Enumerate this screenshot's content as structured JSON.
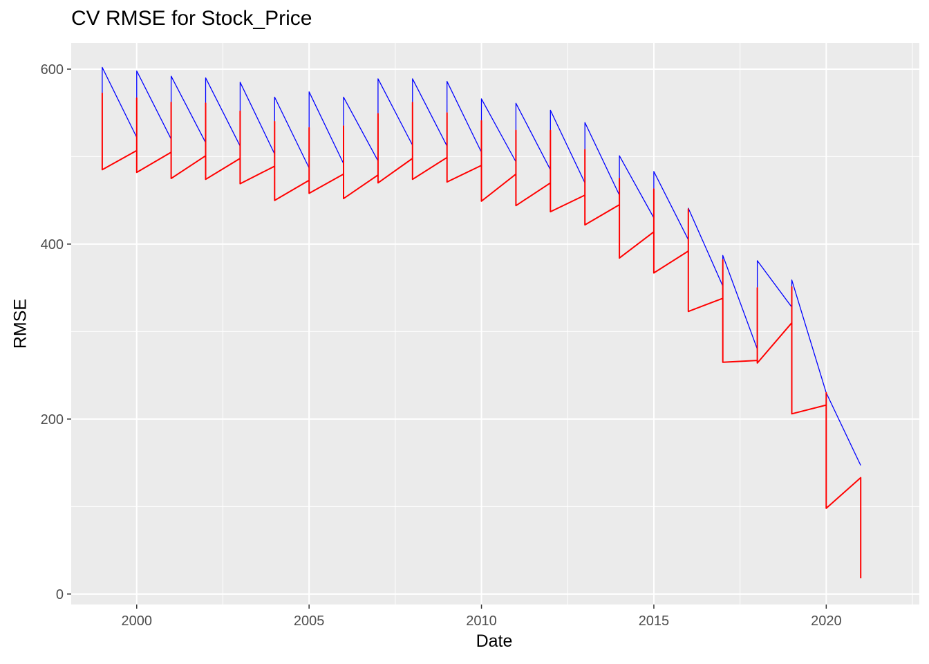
{
  "chart_data": {
    "type": "line",
    "title": "CV RMSE for Stock_Price",
    "xlabel": "Date",
    "ylabel": "RMSE",
    "xlim": [
      1998.1,
      2022.7
    ],
    "ylim": [
      -12,
      630
    ],
    "x_ticks": [
      2000,
      2005,
      2010,
      2015,
      2020
    ],
    "x_tick_labels": [
      "2000",
      "2005",
      "2010",
      "2015",
      "2020"
    ],
    "y_ticks": [
      0,
      200,
      400,
      600
    ],
    "y_tick_labels": [
      "0",
      "200",
      "400",
      "600"
    ],
    "grid": true,
    "legend": "none",
    "colors": {
      "panel": "#ebebeb",
      "grid": "#ffffff",
      "series_blue": "#0000ff",
      "series_red": "#ff0000"
    },
    "series": [
      {
        "color": "#0000ff",
        "x": [
          1999,
          1999,
          2000,
          2000,
          2000,
          2001,
          2001,
          2001,
          2002,
          2002,
          2002,
          2003,
          2003,
          2003,
          2004,
          2004,
          2004,
          2005,
          2005,
          2005,
          2006,
          2006,
          2006,
          2007,
          2007,
          2007,
          2008,
          2008,
          2008,
          2009,
          2009,
          2009,
          2010,
          2010,
          2010,
          2011,
          2011,
          2011,
          2012,
          2012,
          2012,
          2013,
          2013,
          2013,
          2014,
          2014,
          2014,
          2015,
          2015,
          2015,
          2016,
          2016,
          2016,
          2017,
          2017,
          2017,
          2018,
          2018,
          2018,
          2019,
          2019,
          2019,
          2020,
          2020,
          2020,
          2021,
          2021
        ],
        "y": [
          573,
          602,
          522,
          522,
          598,
          520,
          520,
          592,
          516,
          516,
          590,
          512,
          512,
          585,
          503,
          503,
          568,
          487,
          487,
          574,
          492,
          492,
          568,
          495,
          495,
          589,
          513,
          513,
          589,
          512,
          512,
          586,
          505,
          505,
          566,
          494,
          494,
          561,
          485,
          485,
          553,
          470,
          470,
          539,
          456,
          456,
          501,
          430,
          430,
          483,
          405,
          405,
          441,
          352,
          352,
          387,
          280,
          280,
          381,
          328,
          328,
          359,
          230,
          230,
          230,
          147,
          147
        ]
      },
      {
        "color": "#ff0000",
        "x": [
          1999,
          1999,
          2000,
          2000,
          2000,
          2001,
          2001,
          2001,
          2002,
          2002,
          2002,
          2003,
          2003,
          2003,
          2004,
          2004,
          2004,
          2005,
          2005,
          2005,
          2006,
          2006,
          2006,
          2007,
          2007,
          2007,
          2008,
          2008,
          2008,
          2009,
          2009,
          2009,
          2010,
          2010,
          2010,
          2011,
          2011,
          2011,
          2012,
          2012,
          2012,
          2013,
          2013,
          2013,
          2014,
          2014,
          2014,
          2015,
          2015,
          2015,
          2016,
          2016,
          2016,
          2017,
          2017,
          2017,
          2018,
          2018,
          2018,
          2019,
          2019,
          2019,
          2020,
          2020,
          2020,
          2021,
          2021
        ],
        "y": [
          573,
          485,
          507,
          567,
          482,
          505,
          562,
          475,
          501,
          561,
          474,
          498,
          552,
          469,
          489,
          540,
          450,
          473,
          533,
          458,
          480,
          535,
          452,
          479,
          549,
          470,
          498,
          562,
          474,
          499,
          550,
          471,
          490,
          541,
          449,
          480,
          530,
          444,
          470,
          530,
          437,
          456,
          508,
          422,
          445,
          475,
          384,
          414,
          463,
          367,
          392,
          440,
          323,
          338,
          382,
          265,
          267,
          350,
          264,
          310,
          351,
          206,
          216,
          230,
          98,
          133,
          18
        ]
      }
    ]
  }
}
